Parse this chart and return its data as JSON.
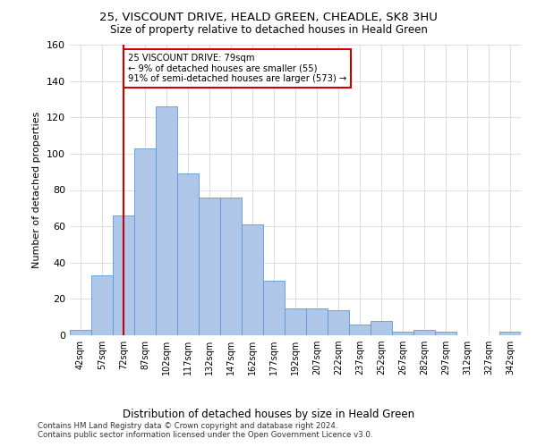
{
  "title": "25, VISCOUNT DRIVE, HEALD GREEN, CHEADLE, SK8 3HU",
  "subtitle": "Size of property relative to detached houses in Heald Green",
  "xlabel": "Distribution of detached houses by size in Heald Green",
  "ylabel": "Number of detached properties",
  "footnote1": "Contains HM Land Registry data © Crown copyright and database right 2024.",
  "footnote2": "Contains public sector information licensed under the Open Government Licence v3.0.",
  "bar_labels": [
    "42sqm",
    "57sqm",
    "72sqm",
    "87sqm",
    "102sqm",
    "117sqm",
    "132sqm",
    "147sqm",
    "162sqm",
    "177sqm",
    "192sqm",
    "207sqm",
    "222sqm",
    "237sqm",
    "252sqm",
    "267sqm",
    "282sqm",
    "297sqm",
    "312sqm",
    "327sqm",
    "342sqm"
  ],
  "bar_values": [
    3,
    33,
    66,
    103,
    126,
    89,
    76,
    76,
    61,
    30,
    15,
    15,
    14,
    6,
    8,
    2,
    3,
    2,
    0,
    0,
    2
  ],
  "bar_color": "#aec6e8",
  "bar_edge_color": "#5b9bd5",
  "ylim": [
    0,
    160
  ],
  "yticks": [
    0,
    20,
    40,
    60,
    80,
    100,
    120,
    140,
    160
  ],
  "vline_x": 2,
  "vline_color": "#cc0000",
  "annotation_line1": "25 VISCOUNT DRIVE: 79sqm",
  "annotation_line2": "← 9% of detached houses are smaller (55)",
  "annotation_line3": "91% of semi-detached houses are larger (573) →",
  "annotation_box_color": "#cc0000",
  "background_color": "#ffffff",
  "grid_color": "#d0d0d0"
}
